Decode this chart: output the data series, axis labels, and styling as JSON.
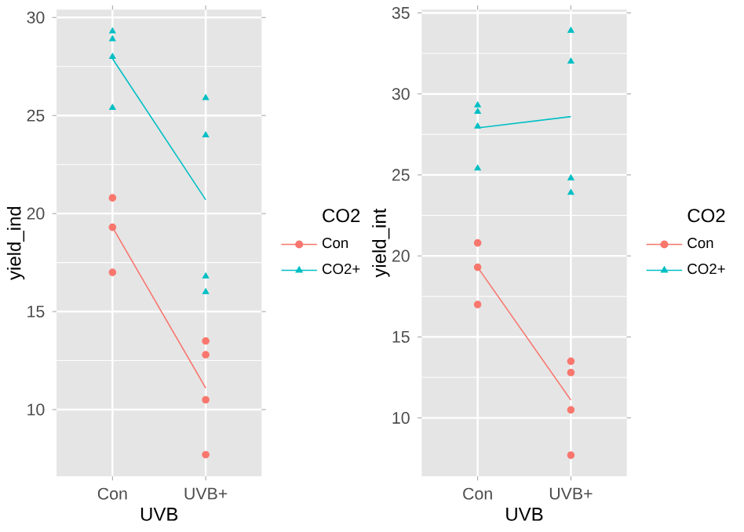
{
  "chart_data": [
    {
      "type": "scatter",
      "categories": [
        "Con",
        "UVB+"
      ],
      "xlabel": "UVB",
      "ylabel": "yield_ind",
      "legend_title": "CO2",
      "legend": "right",
      "grid": true,
      "ylim": [
        6.6,
        30.4
      ],
      "yticks": [
        10,
        15,
        20,
        25,
        30
      ],
      "series": [
        {
          "name": "Con",
          "color": "#f8766d",
          "marker": "circle",
          "x": [
            "Con",
            "Con",
            "Con",
            "UVB+",
            "UVB+",
            "UVB+",
            "UVB+"
          ],
          "values": [
            20.8,
            19.3,
            17.0,
            13.5,
            12.8,
            10.5,
            7.7
          ]
        },
        {
          "name": "CO2+",
          "color": "#00bfc4",
          "marker": "triangle",
          "x": [
            "Con",
            "Con",
            "Con",
            "Con",
            "UVB+",
            "UVB+",
            "UVB+",
            "UVB+"
          ],
          "values": [
            29.3,
            28.9,
            28.0,
            25.4,
            25.9,
            24.0,
            16.8,
            16.0
          ]
        },
        {
          "type": "line",
          "color": "#f8766d",
          "values": [
            19.3,
            11.1
          ]
        },
        {
          "type": "line",
          "color": "#00bfc4",
          "values": [
            27.9,
            20.7
          ]
        }
      ]
    },
    {
      "type": "scatter",
      "categories": [
        "Con",
        "UVB+"
      ],
      "xlabel": "UVB",
      "ylabel": "yield_int",
      "legend_title": "CO2",
      "legend": "right",
      "grid": true,
      "ylim": [
        6.4,
        35.2
      ],
      "yticks": [
        10,
        15,
        20,
        25,
        30,
        35
      ],
      "series": [
        {
          "name": "Con",
          "color": "#f8766d",
          "marker": "circle",
          "x": [
            "Con",
            "Con",
            "Con",
            "UVB+",
            "UVB+",
            "UVB+",
            "UVB+"
          ],
          "values": [
            20.8,
            19.3,
            17.0,
            13.5,
            12.8,
            10.5,
            7.7
          ]
        },
        {
          "name": "CO2+",
          "color": "#00bfc4",
          "marker": "triangle",
          "x": [
            "Con",
            "Con",
            "Con",
            "Con",
            "UVB+",
            "UVB+",
            "UVB+",
            "UVB+"
          ],
          "values": [
            29.3,
            28.9,
            28.0,
            25.4,
            33.9,
            32.0,
            24.8,
            23.9
          ]
        },
        {
          "type": "line",
          "color": "#f8766d",
          "values": [
            19.3,
            11.1
          ]
        },
        {
          "type": "line",
          "color": "#00bfc4",
          "values": [
            27.9,
            28.6
          ]
        }
      ]
    }
  ]
}
